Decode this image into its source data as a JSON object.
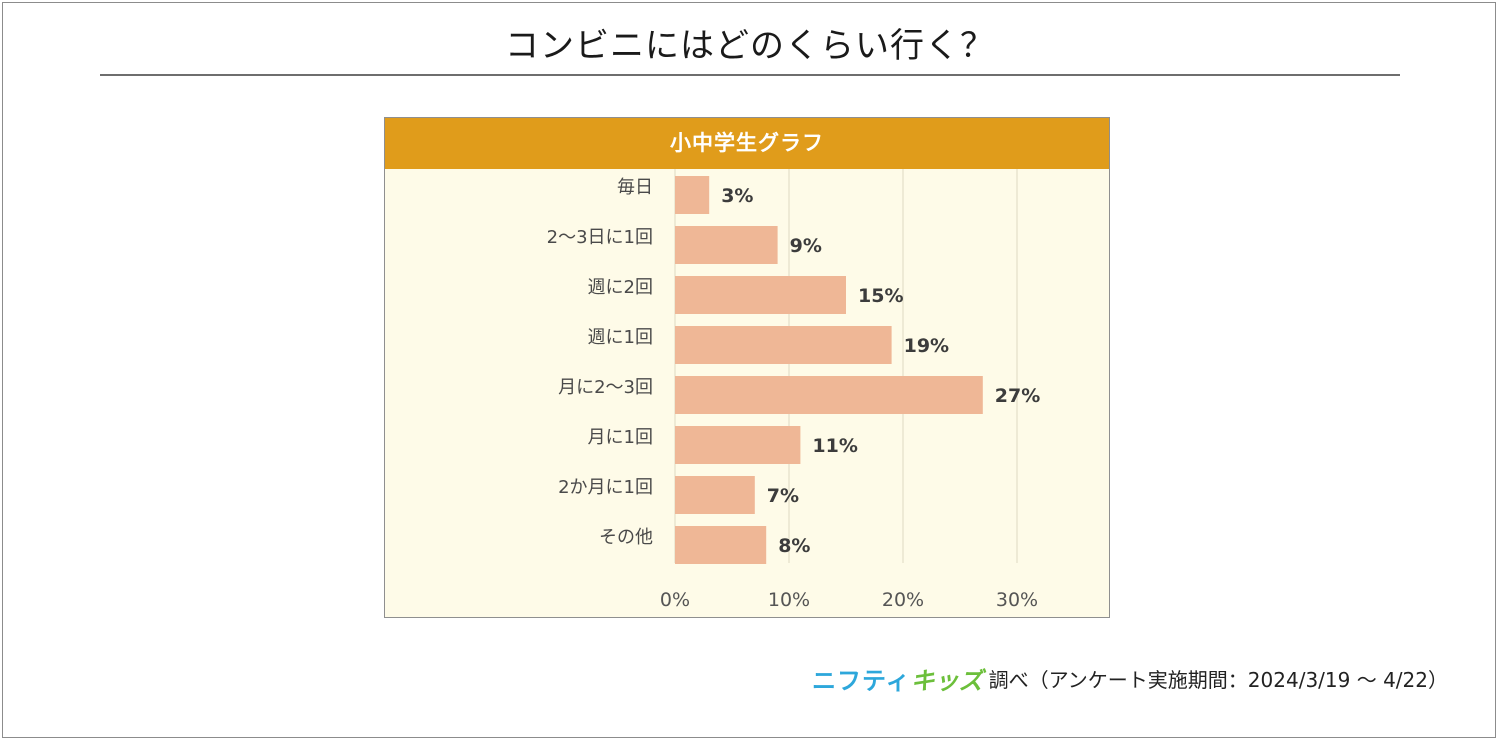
{
  "title": "コンビニにはどのくらい行く？",
  "panel_title": "小中学生グラフ",
  "chart_data": {
    "type": "bar",
    "orientation": "horizontal",
    "categories": [
      "毎日",
      "2～3日に1回",
      "週に2回",
      "週に1回",
      "月に2～3回",
      "月に1回",
      "2か月に1回",
      "その他"
    ],
    "values": [
      3,
      9,
      15,
      19,
      27,
      11,
      7,
      8
    ],
    "value_labels": [
      "3%",
      "9%",
      "15%",
      "19%",
      "27%",
      "11%",
      "7%",
      "8%"
    ],
    "xticks": [
      0,
      10,
      20,
      30
    ],
    "xtick_labels": [
      "0%",
      "10%",
      "20%",
      "30%"
    ],
    "xlim": [
      0,
      36
    ],
    "grid": true,
    "bar_color": "#efb796",
    "grid_color": "#ddd8c2",
    "background_color": "#fefbe8",
    "header_color": "#e09c1b"
  },
  "footer": {
    "logo_part1": "ニフティ",
    "logo_part2": "キッズ",
    "text": "調べ（アンケート実施期間：2024/3/19 ～ 4/22）"
  }
}
